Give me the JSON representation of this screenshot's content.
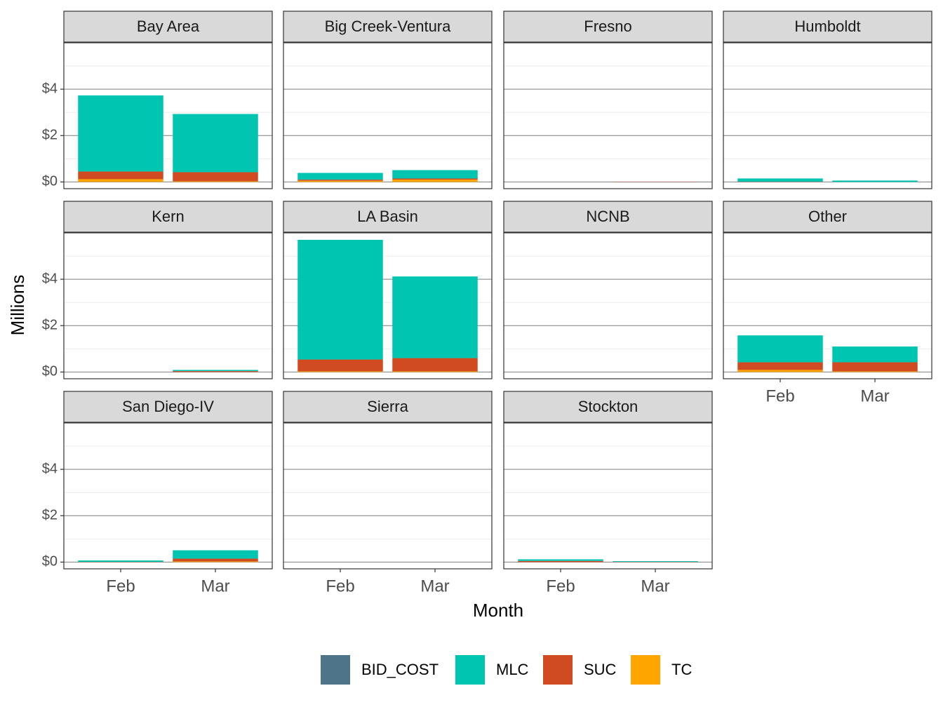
{
  "chart_data": {
    "type": "bar",
    "stacked": true,
    "x_label": "Month",
    "y_label": "Millions",
    "categories": [
      "Feb",
      "Mar"
    ],
    "ylim": [
      -0.29,
      6.0
    ],
    "yticks": [
      {
        "value": 0,
        "label": "$0"
      },
      {
        "value": 2,
        "label": "$2"
      },
      {
        "value": 4,
        "label": "$4"
      }
    ],
    "minor_yticks": [
      1,
      3,
      5
    ],
    "grid": true,
    "legend": "bottom",
    "series": [
      {
        "name": "BID_COST",
        "color": "#4e7489"
      },
      {
        "name": "MLC",
        "color": "#00c5b1"
      },
      {
        "name": "SUC",
        "color": "#d04a22"
      },
      {
        "name": "TC",
        "color": "#ffa500"
      }
    ],
    "facets": [
      {
        "title": "Bay Area",
        "series": [
          {
            "values": [
              0,
              0
            ]
          },
          {
            "values": [
              3.28,
              2.51
            ]
          },
          {
            "values": [
              0.33,
              0.39
            ]
          },
          {
            "values": [
              0.12,
              0.03
            ]
          }
        ]
      },
      {
        "title": "Big Creek-Ventura",
        "series": [
          {
            "values": [
              0,
              0
            ]
          },
          {
            "values": [
              0.29,
              0.36
            ]
          },
          {
            "values": [
              0.05,
              0.05
            ]
          },
          {
            "values": [
              0.05,
              0.1
            ]
          }
        ]
      },
      {
        "title": "Fresno",
        "series": [
          {
            "values": [
              0,
              0
            ]
          },
          {
            "values": [
              0,
              0
            ]
          },
          {
            "values": [
              0,
              0.01
            ]
          },
          {
            "values": [
              0,
              0
            ]
          }
        ]
      },
      {
        "title": "Humboldt",
        "series": [
          {
            "values": [
              0,
              0
            ]
          },
          {
            "values": [
              0.14,
              0.06
            ]
          },
          {
            "values": [
              0.01,
              0
            ]
          },
          {
            "values": [
              0,
              0
            ]
          }
        ]
      },
      {
        "title": "Kern",
        "series": [
          {
            "values": [
              0,
              0
            ]
          },
          {
            "values": [
              0,
              0.05
            ]
          },
          {
            "values": [
              0,
              0.04
            ]
          },
          {
            "values": [
              0,
              0
            ]
          }
        ]
      },
      {
        "title": "LA Basin",
        "series": [
          {
            "values": [
              0,
              0
            ]
          },
          {
            "values": [
              5.16,
              3.52
            ]
          },
          {
            "values": [
              0.51,
              0.57
            ]
          },
          {
            "values": [
              0.03,
              0.03
            ]
          }
        ]
      },
      {
        "title": "NCNB",
        "series": [
          {
            "values": [
              0,
              0
            ]
          },
          {
            "values": [
              0,
              0
            ]
          },
          {
            "values": [
              0,
              0
            ]
          },
          {
            "values": [
              0,
              0
            ]
          }
        ]
      },
      {
        "title": "Other",
        "series": [
          {
            "values": [
              0,
              0
            ]
          },
          {
            "values": [
              1.16,
              0.68
            ]
          },
          {
            "values": [
              0.33,
              0.39
            ]
          },
          {
            "values": [
              0.09,
              0.03
            ]
          }
        ]
      },
      {
        "title": "San Diego-IV",
        "series": [
          {
            "values": [
              0,
              0
            ]
          },
          {
            "values": [
              0.06,
              0.36
            ]
          },
          {
            "values": [
              0.01,
              0.12
            ]
          },
          {
            "values": [
              0,
              0.03
            ]
          }
        ]
      },
      {
        "title": "Sierra",
        "series": [
          {
            "values": [
              0,
              0
            ]
          },
          {
            "values": [
              0,
              0
            ]
          },
          {
            "values": [
              0,
              0
            ]
          },
          {
            "values": [
              0,
              0
            ]
          }
        ]
      },
      {
        "title": "Stockton",
        "series": [
          {
            "values": [
              0,
              0
            ]
          },
          {
            "values": [
              0.07,
              0.03
            ]
          },
          {
            "values": [
              0.05,
              0.01
            ]
          },
          {
            "values": [
              0,
              0
            ]
          }
        ]
      }
    ]
  }
}
